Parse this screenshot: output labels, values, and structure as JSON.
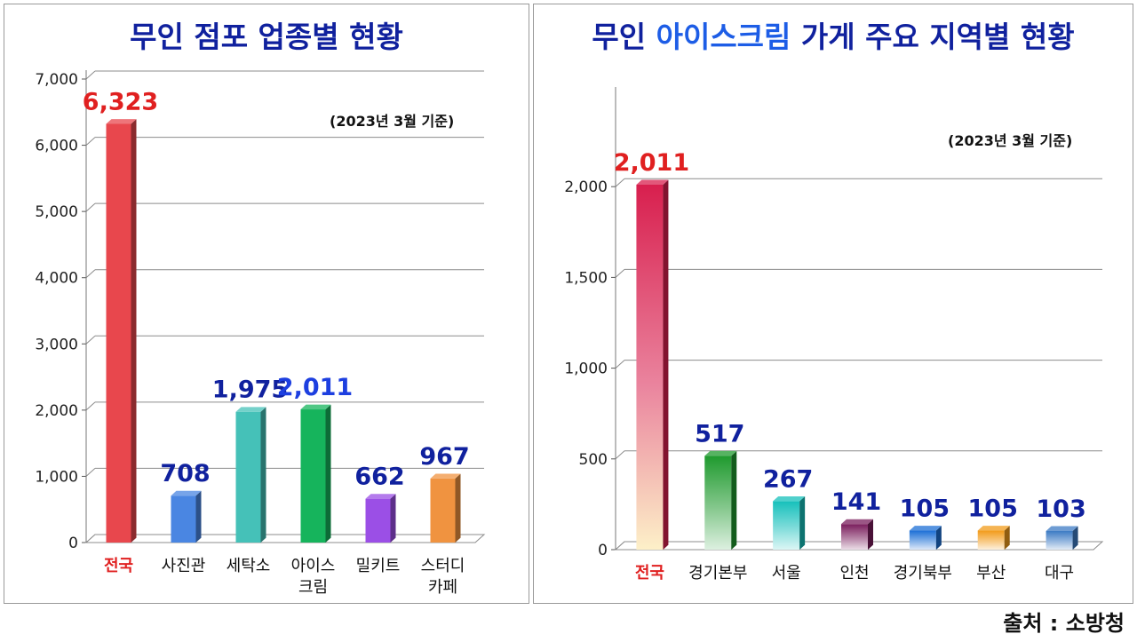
{
  "source": "출처 : 소방청",
  "chart_data": [
    {
      "type": "bar",
      "title": "무인 점포 업종별 현황",
      "subtitle": "(2023년 3월 기준)",
      "categories": [
        "전국",
        "사진관",
        "세탁소",
        "아이스\n크림",
        "밀키트",
        "스터디\n카페"
      ],
      "values": [
        6323,
        708,
        1975,
        2011,
        662,
        967
      ],
      "value_labels": [
        "6,323",
        "708",
        "1,975",
        "2,011",
        "662",
        "967"
      ],
      "ylim": [
        0,
        7000
      ],
      "yticks": [
        0,
        1000,
        2000,
        3000,
        4000,
        5000,
        6000,
        7000
      ],
      "ytick_labels": [
        "0",
        "1,000",
        "2,000",
        "3,000",
        "4,000",
        "5,000",
        "6,000",
        "7,000"
      ],
      "grid": true,
      "bar_colors": [
        "#e8474d",
        "#4a86e2",
        "#45c1b8",
        "#16b45c",
        "#9b4fe6",
        "#f09340"
      ],
      "label_colors": [
        "#e02020",
        "#10219e",
        "#10219e",
        "#1d3fe0",
        "#10219e",
        "#10219e"
      ],
      "category_colors": [
        "#e02020",
        "#111111",
        "#111111",
        "#111111",
        "#111111",
        "#111111"
      ]
    },
    {
      "type": "bar",
      "title_parts": [
        "무인 ",
        "아이스크림",
        " 가게 주요 지역별 현황"
      ],
      "subtitle": "(2023년 3월 기준)",
      "categories": [
        "전국",
        "경기본부",
        "서울",
        "인천",
        "경기북부",
        "부산",
        "대구"
      ],
      "values": [
        2011,
        517,
        267,
        141,
        105,
        105,
        103
      ],
      "value_labels": [
        "2,011",
        "517",
        "267",
        "141",
        "105",
        "105",
        "103"
      ],
      "ylim": [
        0,
        2500
      ],
      "yticks": [
        0,
        500,
        1000,
        1500,
        2000
      ],
      "ytick_labels": [
        "0",
        "500",
        "1,000",
        "1,500",
        "2,000"
      ],
      "grid": true,
      "bar_colors": [
        "#d81f4e",
        "#1f9a2e",
        "#16c0bb",
        "#7a1d5c",
        "#1c6fd6",
        "#f29b1a",
        "#3d7bc4"
      ],
      "label_colors": [
        "#e02020",
        "#10219e",
        "#10219e",
        "#10219e",
        "#10219e",
        "#10219e",
        "#10219e"
      ],
      "category_colors": [
        "#e02020",
        "#111111",
        "#111111",
        "#111111",
        "#111111",
        "#111111",
        "#111111"
      ]
    }
  ]
}
